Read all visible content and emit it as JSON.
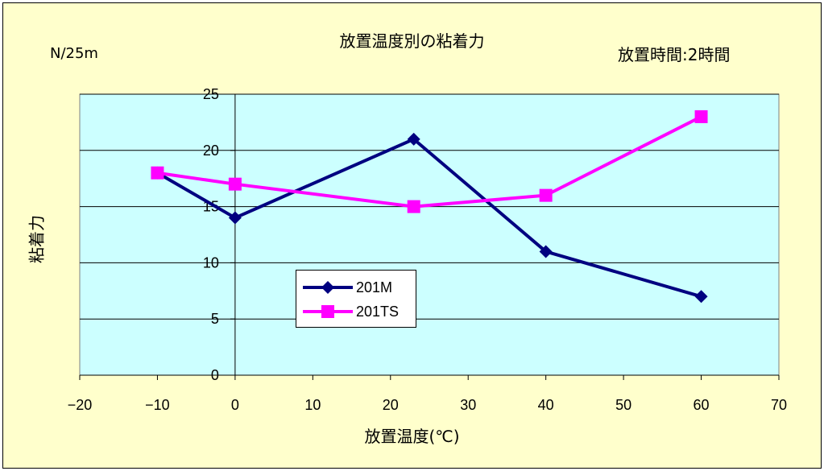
{
  "chart_data": {
    "type": "line",
    "title": "放置温度別の粘着力",
    "unit_label": "N/25m",
    "condition_label": "放置時間:2時間",
    "xlabel": "放置温度(℃)",
    "ylabel": "粘着力",
    "xlim": [
      -20,
      70
    ],
    "ylim": [
      0,
      25
    ],
    "x_ticks": [
      "-20",
      "-10",
      "0",
      "10",
      "20",
      "30",
      "40",
      "50",
      "60",
      "70"
    ],
    "y_ticks": [
      "0",
      "5",
      "10",
      "15",
      "20",
      "25"
    ],
    "grid": "horizontal",
    "legend_position": "center-left",
    "series": [
      {
        "name": "201M",
        "color": "#000080",
        "marker": "diamond",
        "x": [
          -10,
          0,
          23,
          40,
          60
        ],
        "y": [
          18,
          14,
          21,
          11,
          7
        ]
      },
      {
        "name": "201TS",
        "color": "#ff00ff",
        "marker": "square",
        "x": [
          -10,
          0,
          23,
          40,
          60
        ],
        "y": [
          18,
          17,
          15,
          16,
          23
        ]
      }
    ]
  },
  "colors": {
    "background": "#ffffcc",
    "plot_area": "#ccffff"
  }
}
